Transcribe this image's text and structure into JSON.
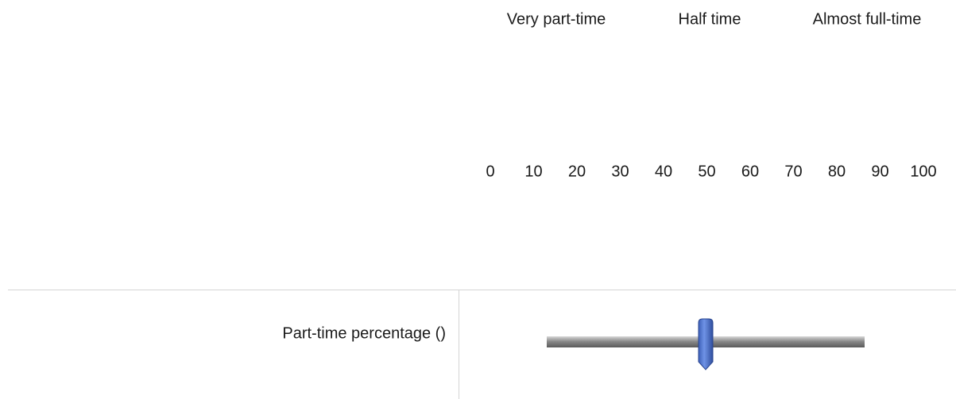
{
  "header": {
    "labels": [
      "Very part-time",
      "Half time",
      "Almost full-time"
    ]
  },
  "scale": {
    "ticks": [
      0,
      10,
      20,
      30,
      40,
      50,
      60,
      70,
      80,
      90,
      100
    ]
  },
  "row": {
    "label": "Part-time percentage ()",
    "slider_value": 50
  }
}
